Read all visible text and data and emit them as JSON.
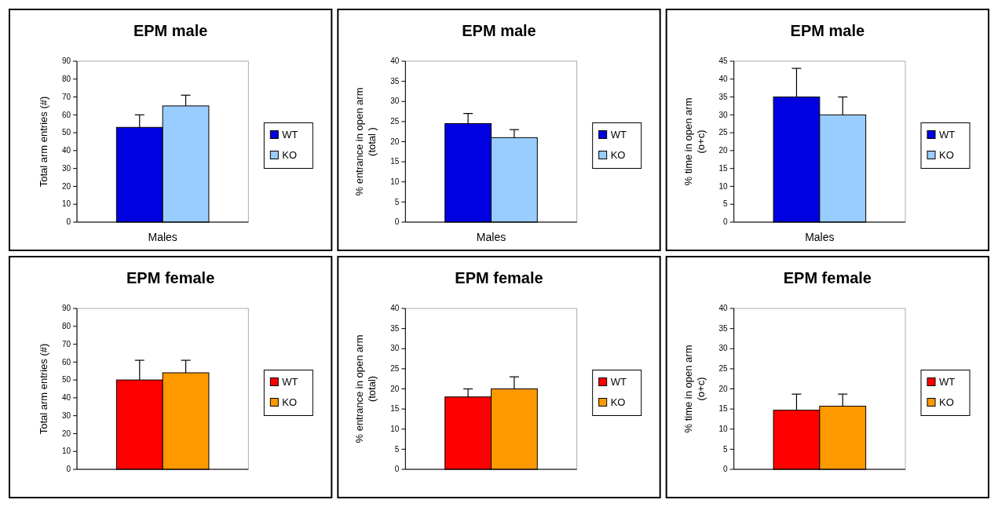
{
  "chart_data": [
    {
      "type": "bar",
      "title": "EPM male",
      "ylabel": "Total arm entries (#)",
      "categories": [
        "Males"
      ],
      "ylim": [
        0,
        90
      ],
      "yticks": [
        0,
        10,
        20,
        30,
        40,
        50,
        60,
        70,
        80,
        90
      ],
      "legend": "right",
      "grid": false,
      "series": [
        {
          "name": "WT",
          "color": "#0000e0",
          "values": [
            53
          ],
          "errors": [
            7
          ]
        },
        {
          "name": "KO",
          "color": "#99ccff",
          "values": [
            65
          ],
          "errors": [
            6
          ]
        }
      ]
    },
    {
      "type": "bar",
      "title": "EPM male",
      "ylabel": "% entrance in open arm (total )",
      "categories": [
        "Males"
      ],
      "ylim": [
        0,
        40
      ],
      "yticks": [
        0,
        5,
        10,
        15,
        20,
        25,
        30,
        35,
        40
      ],
      "legend": "right",
      "grid": false,
      "series": [
        {
          "name": "WT",
          "color": "#0000e0",
          "values": [
            24.5
          ],
          "errors": [
            2.5
          ]
        },
        {
          "name": "KO",
          "color": "#99ccff",
          "values": [
            21
          ],
          "errors": [
            2
          ]
        }
      ]
    },
    {
      "type": "bar",
      "title": "EPM male",
      "ylabel": "% time in open arm (o+c)",
      "categories": [
        "Males"
      ],
      "ylim": [
        0,
        45
      ],
      "yticks": [
        0,
        5,
        10,
        15,
        20,
        25,
        30,
        35,
        40,
        45
      ],
      "legend": "right",
      "grid": false,
      "series": [
        {
          "name": "WT",
          "color": "#0000e0",
          "values": [
            35
          ],
          "errors": [
            8
          ]
        },
        {
          "name": "KO",
          "color": "#99ccff",
          "values": [
            30
          ],
          "errors": [
            5
          ]
        }
      ]
    },
    {
      "type": "bar",
      "title": "EPM female",
      "ylabel": "Total arm entries (#)",
      "categories": [
        null
      ],
      "ylim": [
        0,
        90
      ],
      "yticks": [
        0,
        10,
        20,
        30,
        40,
        50,
        60,
        70,
        80,
        90
      ],
      "legend": "right",
      "grid": false,
      "series": [
        {
          "name": "WT",
          "color": "#ff0000",
          "values": [
            50
          ],
          "errors": [
            11
          ]
        },
        {
          "name": "KO",
          "color": "#ff9900",
          "values": [
            54
          ],
          "errors": [
            7
          ]
        }
      ]
    },
    {
      "type": "bar",
      "title": "EPM female",
      "ylabel": "% entrance in open arm (total)",
      "categories": [
        null
      ],
      "ylim": [
        0,
        40
      ],
      "yticks": [
        0,
        5,
        10,
        15,
        20,
        25,
        30,
        35,
        40
      ],
      "legend": "right",
      "grid": false,
      "series": [
        {
          "name": "WT",
          "color": "#ff0000",
          "values": [
            18
          ],
          "errors": [
            2
          ]
        },
        {
          "name": "KO",
          "color": "#ff9900",
          "values": [
            20
          ],
          "errors": [
            3
          ]
        }
      ]
    },
    {
      "type": "bar",
      "title": "EPM female",
      "ylabel": "% time in open arm (o+c)",
      "categories": [
        null
      ],
      "ylim": [
        0,
        40
      ],
      "yticks": [
        0,
        5,
        10,
        15,
        20,
        25,
        30,
        35,
        40
      ],
      "legend": "right",
      "grid": false,
      "series": [
        {
          "name": "WT",
          "color": "#ff0000",
          "values": [
            14.7
          ],
          "errors": [
            4
          ]
        },
        {
          "name": "KO",
          "color": "#ff9900",
          "values": [
            15.7
          ],
          "errors": [
            3
          ]
        }
      ]
    }
  ]
}
